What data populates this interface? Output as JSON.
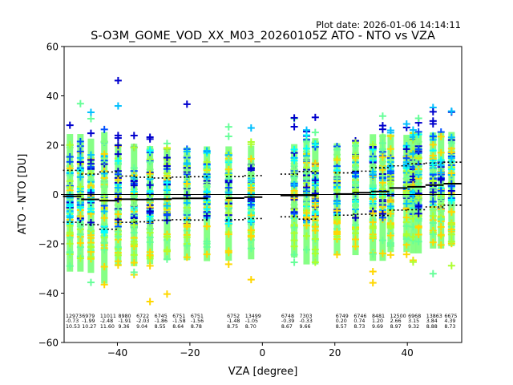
{
  "header": {
    "plot_date": "Plot date: 2026-01-06 14:14:11",
    "title": "S-O3M_GOME_VOD_XX_M03_20260105Z ATO - NTO vs VZA"
  },
  "chart_data": {
    "type": "scatter",
    "title": "S-O3M_GOME_VOD_XX_M03_20260105Z ATO - NTO vs VZA",
    "xlabel": "VZA [degree]",
    "ylabel": "ATO - NTO [DU]",
    "xlim": [
      -54.7,
      55.0
    ],
    "ylim": [
      -60,
      60
    ],
    "xticks": [
      -40,
      -20,
      0,
      20,
      40
    ],
    "xtick_labels": [
      "−40",
      "−20",
      "0",
      "20",
      "40"
    ],
    "yticks": [
      -60,
      -40,
      -20,
      0,
      20,
      40,
      60
    ],
    "ytick_labels": [
      "−60",
      "−40",
      "−20",
      "0",
      "20",
      "40",
      "60"
    ],
    "marker": "+",
    "grid": false,
    "zero_line": true,
    "colors": {
      "mean_line": "#000000",
      "std_line": "#000000",
      "zero_line": "#000000",
      "colormap": [
        "#0000cd",
        "#0050ff",
        "#00bfff",
        "#00ffff",
        "#66ff99",
        "#80ff80",
        "#adff2f",
        "#ffd700"
      ]
    },
    "bins": [
      {
        "start": -55,
        "end": -50,
        "count": "12973",
        "mean": "-0.73",
        "std": "10.53"
      },
      {
        "start": -50,
        "end": -45,
        "count": "6979",
        "mean": "-1.99",
        "std": "10.27"
      },
      {
        "start": -45,
        "end": -40,
        "count": "11011",
        "mean": "-2.48",
        "std": "11.60"
      },
      {
        "start": -40,
        "end": -35,
        "count": "8980",
        "mean": "-1.91",
        "std": "9.36"
      },
      {
        "start": -35,
        "end": -30,
        "count": "6722",
        "mean": "-2.03",
        "std": "9.04"
      },
      {
        "start": -30,
        "end": -25,
        "count": "6745",
        "mean": "-1.86",
        "std": "8.55"
      },
      {
        "start": -25,
        "end": -20,
        "count": "6751",
        "mean": "-1.58",
        "std": "8.64"
      },
      {
        "start": -20,
        "end": -15,
        "count": "6751",
        "mean": "-1.56",
        "std": "8.78"
      },
      {
        "start": -10,
        "end": -5,
        "count": "6752",
        "mean": "-1.48",
        "std": "8.75"
      },
      {
        "start": -5,
        "end": 0,
        "count": "13499",
        "mean": "-1.05",
        "std": "8.70"
      },
      {
        "start": 5,
        "end": 10,
        "count": "6748",
        "mean": "-0.39",
        "std": "8.67"
      },
      {
        "start": 10,
        "end": 15,
        "count": "7303",
        "mean": "-0.33",
        "std": "9.66"
      },
      {
        "start": 20,
        "end": 25,
        "count": "6749",
        "mean": "0.20",
        "std": "8.57"
      },
      {
        "start": 25,
        "end": 30,
        "count": "6746",
        "mean": "0.74",
        "std": "8.73"
      },
      {
        "start": 30,
        "end": 35,
        "count": "8481",
        "mean": "1.20",
        "std": "9.69"
      },
      {
        "start": 35,
        "end": 40,
        "count": "12500",
        "mean": "2.66",
        "std": "8.97"
      },
      {
        "start": 40,
        "end": 45,
        "count": "6968",
        "mean": "3.15",
        "std": "9.32"
      },
      {
        "start": 45,
        "end": 50,
        "count": "13863",
        "mean": "3.84",
        "std": "8.88"
      },
      {
        "start": 50,
        "end": 55,
        "count": "6675",
        "mean": "4.39",
        "std": "8.73"
      }
    ],
    "scan_columns_vza": [
      -53.1,
      -50.2,
      -47.3,
      -43.6,
      -39.8,
      -35.4,
      -31.0,
      -26.3,
      -20.8,
      -15.3,
      -9.3,
      -3.1,
      8.8,
      12.2,
      14.6,
      20.6,
      25.7,
      30.5,
      33.2,
      35.4,
      39.8,
      41.6,
      43.1,
      47.1,
      49.3,
      52.2
    ]
  }
}
